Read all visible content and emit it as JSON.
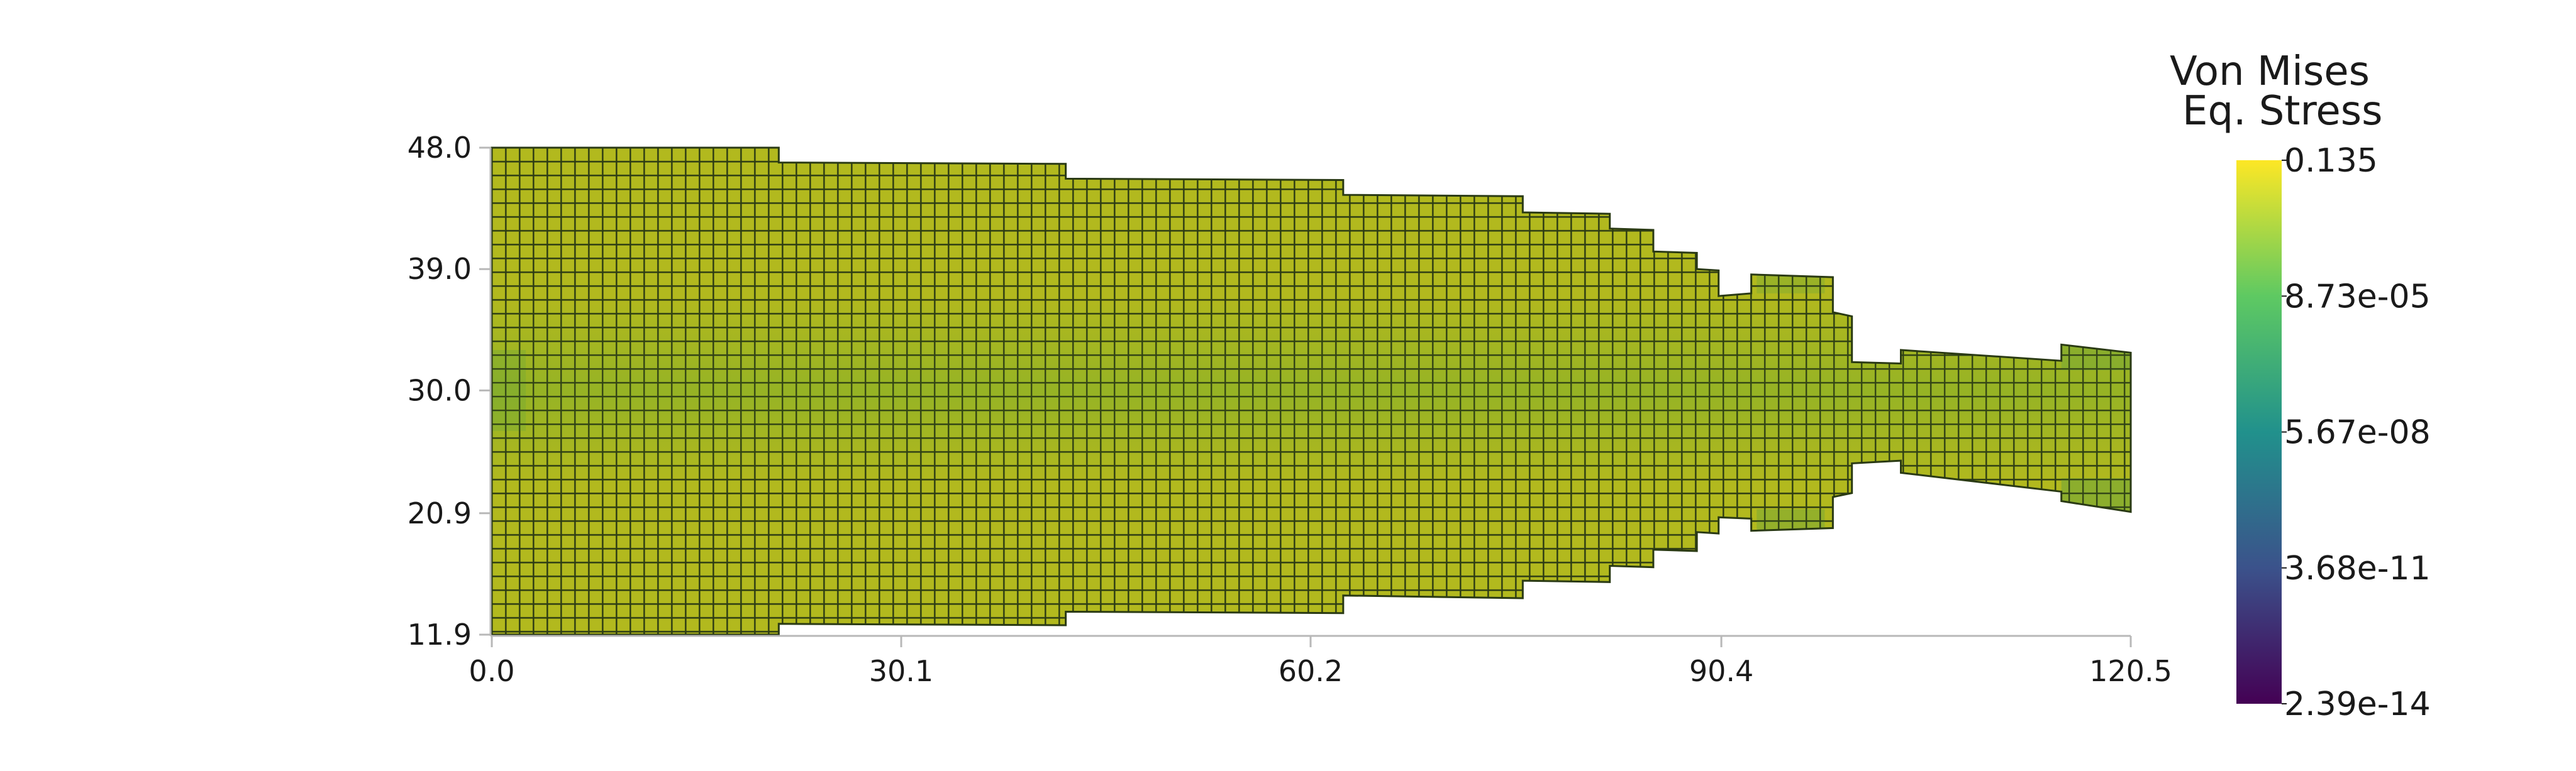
{
  "chart_data": {
    "type": "heatmap",
    "title": "",
    "xlabel": "",
    "ylabel": "",
    "xlim": [
      0.0,
      120.5
    ],
    "ylim": [
      11.9,
      48.0
    ],
    "x_ticks": [
      "0.0",
      "30.1",
      "60.2",
      "90.4",
      "120.5"
    ],
    "y_ticks": [
      "11.9",
      "20.9",
      "30.0",
      "39.0",
      "48.0"
    ],
    "grid": false,
    "legend": "right",
    "colorbar": {
      "title_lines": [
        "Von Mises",
        "Eq. Stress"
      ],
      "tick_labels": [
        "0.135",
        "8.73e-05",
        "5.67e-08",
        "3.68e-11",
        "2.39e-14"
      ],
      "scale": "log",
      "colormap": "viridis",
      "colors": [
        "#fde725",
        "#5ec962",
        "#21918c",
        "#3b528b",
        "#440154"
      ]
    },
    "mesh": {
      "element_color": "#b2b91e",
      "grid_line_color": "#2a3a14",
      "center_band_color": "#7fae2a",
      "tip_band_color": "#6ea63a",
      "segments": [
        {
          "x": [
            0.0,
            21.1
          ],
          "y_top": [
            48.0,
            48.0
          ],
          "y_bottom": [
            11.9,
            11.9
          ]
        },
        {
          "x": [
            21.1,
            42.2
          ],
          "y_top": [
            46.9,
            46.8
          ],
          "y_bottom": [
            12.7,
            12.6
          ]
        },
        {
          "x": [
            42.2,
            62.6
          ],
          "y_top": [
            45.7,
            45.6
          ],
          "y_bottom": [
            13.6,
            13.5
          ]
        },
        {
          "x": [
            62.6,
            75.8
          ],
          "y_top": [
            44.5,
            44.4
          ],
          "y_bottom": [
            14.8,
            14.6
          ]
        },
        {
          "x": [
            75.8,
            82.2
          ],
          "y_top": [
            43.2,
            43.1
          ],
          "y_bottom": [
            15.9,
            15.8
          ]
        },
        {
          "x": [
            82.2,
            85.4
          ],
          "y_top": [
            42.0,
            41.9
          ],
          "y_bottom": [
            17.0,
            16.9
          ]
        },
        {
          "x": [
            85.4,
            88.6
          ],
          "y_top": [
            40.3,
            40.2
          ],
          "y_bottom": [
            18.2,
            18.1
          ]
        },
        {
          "x": [
            88.6,
            90.2
          ],
          "y_top": [
            39.0,
            38.9
          ],
          "y_bottom": [
            19.5,
            19.4
          ]
        },
        {
          "x": [
            90.2,
            92.6
          ],
          "y_top": [
            37.0,
            37.2
          ],
          "y_bottom": [
            20.6,
            20.5
          ]
        },
        {
          "x": [
            92.6,
            98.6
          ],
          "y_top": [
            38.6,
            38.4
          ],
          "y_bottom": [
            19.6,
            19.8
          ]
        },
        {
          "x": [
            98.6,
            100.0
          ],
          "y_top": [
            35.8,
            35.5
          ],
          "y_bottom": [
            22.1,
            22.4
          ]
        },
        {
          "x": [
            100.0,
            103.6
          ],
          "y_top": [
            32.1,
            32.0
          ],
          "y_bottom": [
            24.6,
            24.8
          ]
        },
        {
          "x": [
            103.6,
            115.4
          ],
          "y_top": [
            33.0,
            32.2
          ],
          "y_bottom": [
            23.9,
            22.5
          ]
        },
        {
          "x": [
            115.4,
            120.5
          ],
          "y_top": [
            33.4,
            32.8
          ],
          "y_bottom": [
            21.8,
            21.0
          ]
        }
      ]
    }
  }
}
